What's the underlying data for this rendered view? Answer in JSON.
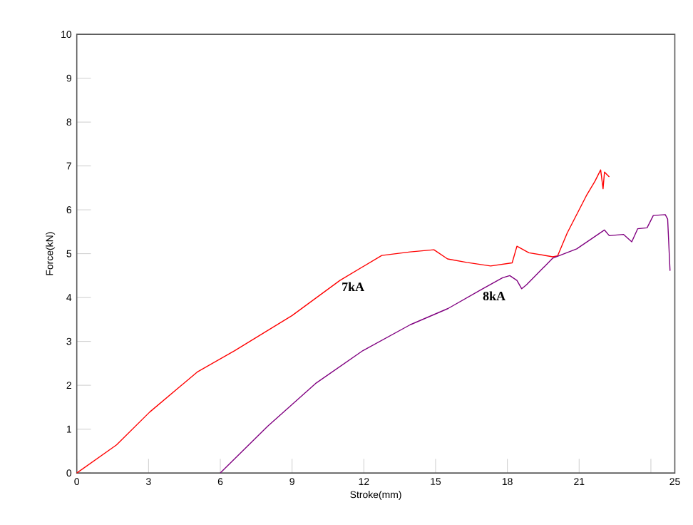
{
  "chart_data": {
    "type": "line",
    "xlabel": "Stroke(mm)",
    "ylabel": "Force(kN)",
    "xlim": [
      0,
      25
    ],
    "ylim": [
      0,
      10
    ],
    "xticks": [
      0,
      3,
      6,
      9,
      12,
      15,
      18,
      21,
      {
        "value": 24,
        "label": null
      },
      25
    ],
    "yticks": [
      0,
      1,
      2,
      3,
      4,
      5,
      6,
      7,
      8,
      9,
      10
    ],
    "grid": false,
    "legend": false,
    "marker": "none",
    "line_style": "solid",
    "series": [
      {
        "name": "7kA",
        "color": "#ff0000",
        "x": [
          0,
          1.66,
          3.05,
          5.03,
          6.6,
          9.0,
          11.0,
          12.75,
          13.94,
          14.93,
          15.5,
          16.3,
          17.3,
          18.2,
          18.4,
          18.9,
          19.9,
          20.1,
          20.5,
          21.3,
          21.66,
          21.9,
          22.0,
          22.06,
          22.26
        ],
        "values": [
          0,
          0.64,
          1.39,
          2.3,
          2.79,
          3.59,
          4.39,
          4.96,
          5.04,
          5.09,
          4.88,
          4.8,
          4.72,
          4.79,
          5.17,
          5.02,
          4.93,
          4.95,
          5.47,
          6.32,
          6.65,
          6.91,
          6.48,
          6.86,
          6.75
        ]
      },
      {
        "name": "8kA",
        "color": "#800080",
        "x": [
          6.0,
          7.99,
          9.98,
          11.96,
          13.94,
          15.52,
          16.9,
          17.8,
          18.1,
          18.4,
          18.6,
          18.8,
          19.9,
          20.9,
          22.06,
          22.26,
          22.85,
          23.2,
          23.45,
          23.84,
          24.1,
          24.6,
          24.7,
          24.8
        ],
        "values": [
          0,
          1.07,
          2.04,
          2.79,
          3.38,
          3.75,
          4.18,
          4.45,
          4.5,
          4.39,
          4.2,
          4.29,
          4.9,
          5.11,
          5.54,
          5.41,
          5.44,
          5.27,
          5.57,
          5.59,
          5.87,
          5.89,
          5.79,
          4.61
        ]
      }
    ]
  }
}
